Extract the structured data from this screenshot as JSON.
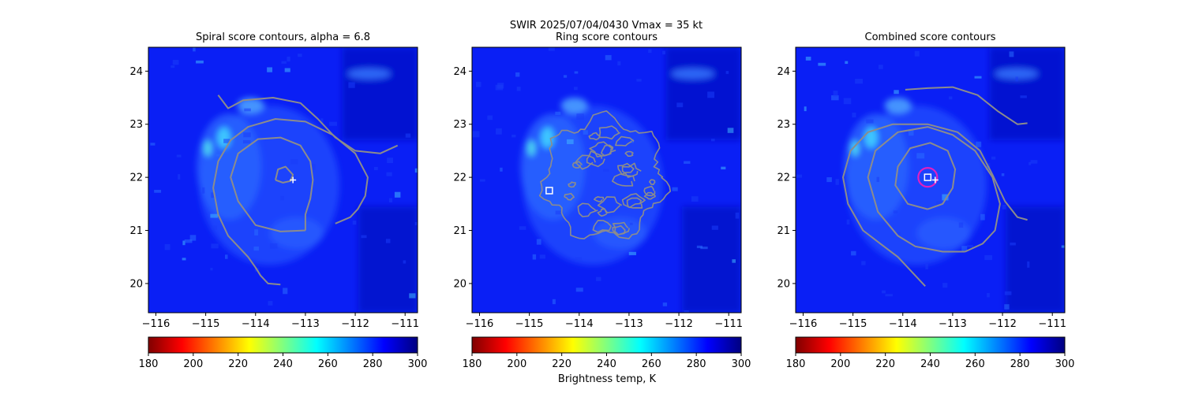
{
  "figure": {
    "suptitle_line1": "SWIR  2025/07/04/0430    Vmax = 35 kt",
    "colorbar_label": "Brightness temp, K"
  },
  "colorbar": {
    "range": [
      180,
      300
    ],
    "ticks": [
      180,
      200,
      220,
      240,
      260,
      280,
      300
    ],
    "colormap": "jet",
    "stops": [
      "#800000",
      "#ff0000",
      "#ff8000",
      "#ffff00",
      "#80ff80",
      "#00ffff",
      "#0080ff",
      "#0000ff",
      "#000080"
    ]
  },
  "chart_data": [
    {
      "type": "heatmap",
      "title": "Spiral score contours, alpha =  6.8",
      "x_ticks": [
        -116,
        -115,
        -114,
        -113,
        -112,
        -111
      ],
      "y_ticks": [
        20,
        21,
        22,
        23,
        24
      ],
      "xlim": [
        -116.15,
        -110.75
      ],
      "ylim": [
        19.45,
        24.45
      ],
      "contours": [
        {
          "name": "outer-arc",
          "points": [
            [
              -114.75,
              23.55
            ],
            [
              -114.55,
              23.3
            ],
            [
              -114.25,
              23.45
            ],
            [
              -113.65,
              23.5
            ],
            [
              -113.1,
              23.4
            ],
            [
              -112.75,
              23.1
            ],
            [
              -112.4,
              22.75
            ],
            [
              -112.0,
              22.5
            ],
            [
              -111.5,
              22.45
            ],
            [
              -111.15,
              22.6
            ]
          ]
        },
        {
          "name": "spiral",
          "points": [
            [
              -113.5,
              19.98
            ],
            [
              -113.75,
              20.0
            ],
            [
              -113.9,
              20.15
            ],
            [
              -114.0,
              20.3
            ],
            [
              -114.15,
              20.5
            ],
            [
              -114.35,
              20.7
            ],
            [
              -114.55,
              20.9
            ],
            [
              -114.75,
              21.3
            ],
            [
              -114.85,
              21.8
            ],
            [
              -114.75,
              22.3
            ],
            [
              -114.5,
              22.7
            ],
            [
              -114.15,
              22.95
            ],
            [
              -113.6,
              23.1
            ],
            [
              -113.0,
              23.05
            ],
            [
              -112.45,
              22.8
            ],
            [
              -112.0,
              22.45
            ],
            [
              -111.75,
              22.0
            ],
            [
              -111.8,
              21.65
            ],
            [
              -111.95,
              21.4
            ],
            [
              -112.1,
              21.25
            ],
            [
              -112.4,
              21.13
            ]
          ]
        },
        {
          "name": "inner",
          "points": [
            [
              -113.0,
              21.0
            ],
            [
              -113.5,
              20.98
            ],
            [
              -114.0,
              21.1
            ],
            [
              -114.35,
              21.55
            ],
            [
              -114.5,
              22.0
            ],
            [
              -114.35,
              22.45
            ],
            [
              -113.95,
              22.72
            ],
            [
              -113.5,
              22.75
            ],
            [
              -113.1,
              22.6
            ],
            [
              -112.9,
              22.3
            ],
            [
              -112.85,
              21.95
            ],
            [
              -112.9,
              21.6
            ],
            [
              -113.0,
              21.3
            ],
            [
              -113.0,
              21.0
            ]
          ]
        },
        {
          "name": "core",
          "points": [
            [
              -113.6,
              21.95
            ],
            [
              -113.55,
              22.15
            ],
            [
              -113.4,
              22.2
            ],
            [
              -113.25,
              22.05
            ],
            [
              -113.3,
              21.93
            ],
            [
              -113.45,
              21.9
            ],
            [
              -113.6,
              21.95
            ]
          ]
        }
      ],
      "markers": [
        {
          "symbol": "+",
          "x": -113.25,
          "y": 21.95,
          "color": "#ffffff"
        }
      ]
    },
    {
      "type": "heatmap",
      "title": "Ring score contours",
      "x_ticks": [
        -116,
        -115,
        -114,
        -113,
        -112,
        -111
      ],
      "y_ticks": [
        20,
        21,
        22,
        23,
        24
      ],
      "xlim": [
        -116.15,
        -110.75
      ],
      "ylim": [
        19.45,
        24.45
      ],
      "ring_contour": {
        "center": [
          -113.5,
          22.0
        ],
        "radius": 1.25
      },
      "markers": [
        {
          "symbol": "square",
          "x": -114.6,
          "y": 21.75,
          "color": "#ffffff"
        }
      ]
    },
    {
      "type": "heatmap",
      "title": "Combined score contours",
      "x_ticks": [
        -116,
        -115,
        -114,
        -113,
        -112,
        -111
      ],
      "y_ticks": [
        20,
        21,
        22,
        23,
        24
      ],
      "xlim": [
        -116.15,
        -110.75
      ],
      "ylim": [
        19.45,
        24.45
      ],
      "contours": [
        {
          "name": "outer-arc",
          "points": [
            [
              -113.95,
              23.65
            ],
            [
              -113.5,
              23.68
            ],
            [
              -113.0,
              23.7
            ],
            [
              -112.5,
              23.55
            ],
            [
              -112.1,
              23.25
            ],
            [
              -111.7,
              23.0
            ],
            [
              -111.5,
              23.02
            ]
          ]
        },
        {
          "name": "spiral",
          "points": [
            [
              -113.55,
              19.95
            ],
            [
              -113.8,
              20.2
            ],
            [
              -114.1,
              20.5
            ],
            [
              -114.45,
              20.75
            ],
            [
              -114.8,
              21.0
            ],
            [
              -115.1,
              21.5
            ],
            [
              -115.2,
              22.0
            ],
            [
              -115.05,
              22.5
            ],
            [
              -114.7,
              22.85
            ],
            [
              -114.2,
              23.0
            ],
            [
              -113.5,
              23.0
            ],
            [
              -112.9,
              22.85
            ],
            [
              -112.45,
              22.5
            ],
            [
              -112.2,
              22.05
            ],
            [
              -111.95,
              21.55
            ],
            [
              -111.7,
              21.25
            ],
            [
              -111.5,
              21.2
            ]
          ]
        },
        {
          "name": "mid",
          "points": [
            [
              -112.75,
              20.6
            ],
            [
              -113.2,
              20.6
            ],
            [
              -113.75,
              20.7
            ],
            [
              -114.1,
              20.9
            ],
            [
              -114.5,
              21.35
            ],
            [
              -114.7,
              22.0
            ],
            [
              -114.55,
              22.5
            ],
            [
              -114.1,
              22.85
            ],
            [
              -113.5,
              22.95
            ],
            [
              -113.0,
              22.8
            ],
            [
              -112.55,
              22.5
            ],
            [
              -112.2,
              22.0
            ],
            [
              -112.05,
              21.5
            ],
            [
              -112.15,
              21.0
            ],
            [
              -112.4,
              20.75
            ],
            [
              -112.75,
              20.6
            ]
          ]
        },
        {
          "name": "inner",
          "points": [
            [
              -113.5,
              21.4
            ],
            [
              -113.9,
              21.5
            ],
            [
              -114.15,
              21.85
            ],
            [
              -114.1,
              22.2
            ],
            [
              -113.85,
              22.55
            ],
            [
              -113.45,
              22.65
            ],
            [
              -113.1,
              22.5
            ],
            [
              -112.95,
              22.15
            ],
            [
              -113.0,
              21.8
            ],
            [
              -113.2,
              21.5
            ],
            [
              -113.5,
              21.4
            ]
          ]
        }
      ],
      "markers": [
        {
          "symbol": "circle",
          "x": -113.5,
          "y": 22.0,
          "color": "#e020c0"
        },
        {
          "symbol": "square",
          "x": -113.5,
          "y": 22.0,
          "color": "#ffffff"
        },
        {
          "symbol": "+",
          "x": -113.35,
          "y": 21.95,
          "color": "#ffffff"
        }
      ]
    }
  ]
}
